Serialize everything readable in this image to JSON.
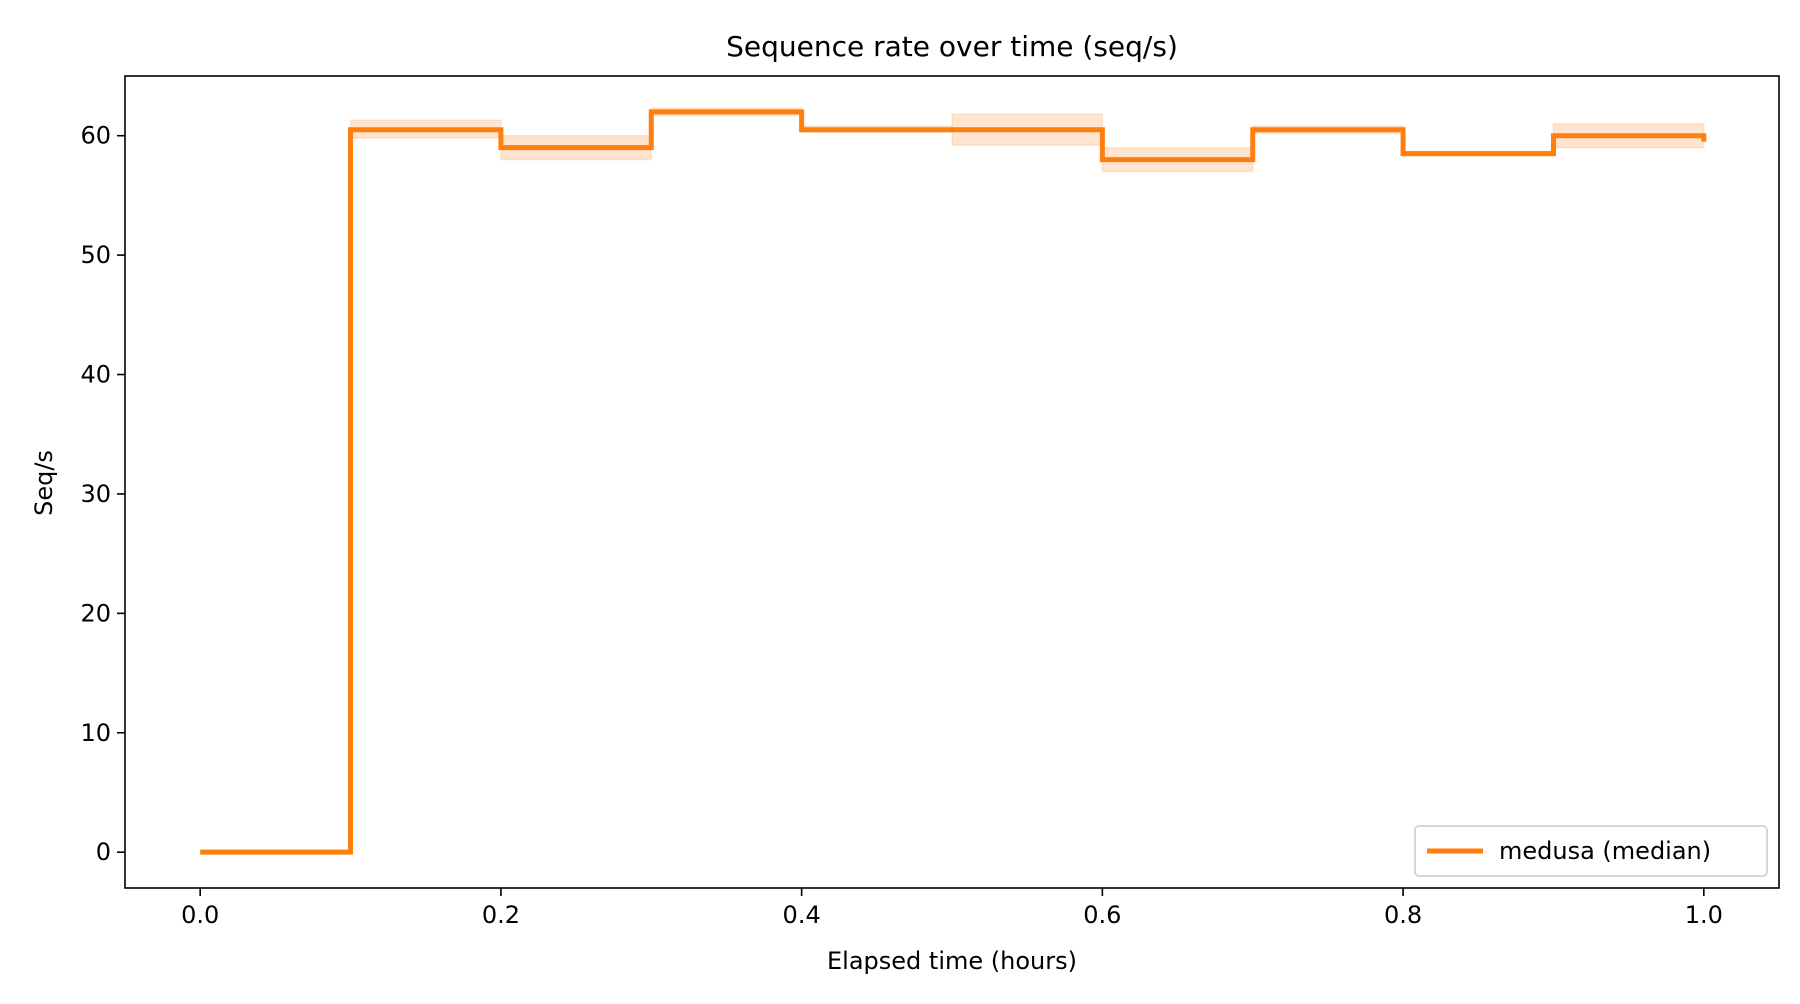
{
  "chart_data": {
    "type": "line",
    "step": "post",
    "title": "Sequence rate over time (seq/s)",
    "xlabel": "Elapsed time (hours)",
    "ylabel": "Seq/s",
    "xlim": [
      -0.05,
      1.05
    ],
    "ylim": [
      -3,
      65
    ],
    "xticks": [
      0.0,
      0.2,
      0.4,
      0.6,
      0.8,
      1.0
    ],
    "xtick_labels": [
      "0.0",
      "0.2",
      "0.4",
      "0.6",
      "0.8",
      "1.0"
    ],
    "yticks": [
      0,
      10,
      20,
      30,
      40,
      50,
      60
    ],
    "ytick_labels": [
      "0",
      "10",
      "20",
      "30",
      "40",
      "50",
      "60"
    ],
    "grid": false,
    "legend_position": "lower-right",
    "series": [
      {
        "name": "medusa (median)",
        "color": "#ff7f0e",
        "x": [
          0.0,
          0.1,
          0.2,
          0.3,
          0.4,
          0.5,
          0.6,
          0.7,
          0.8,
          0.9,
          1.0
        ],
        "y": [
          0.0,
          60.5,
          59.0,
          62.0,
          60.5,
          60.5,
          58.0,
          60.5,
          58.5,
          60.0,
          59.5
        ],
        "band": {
          "color": "#ff7f0e",
          "opacity": 0.2,
          "lower": [
            0.0,
            59.8,
            58.0,
            61.7,
            60.3,
            59.2,
            57.0,
            60.2,
            58.3,
            59.0,
            59.0
          ],
          "upper": [
            0.0,
            61.3,
            60.0,
            62.3,
            60.8,
            61.8,
            59.0,
            60.8,
            58.7,
            61.0,
            60.0
          ]
        }
      }
    ]
  }
}
